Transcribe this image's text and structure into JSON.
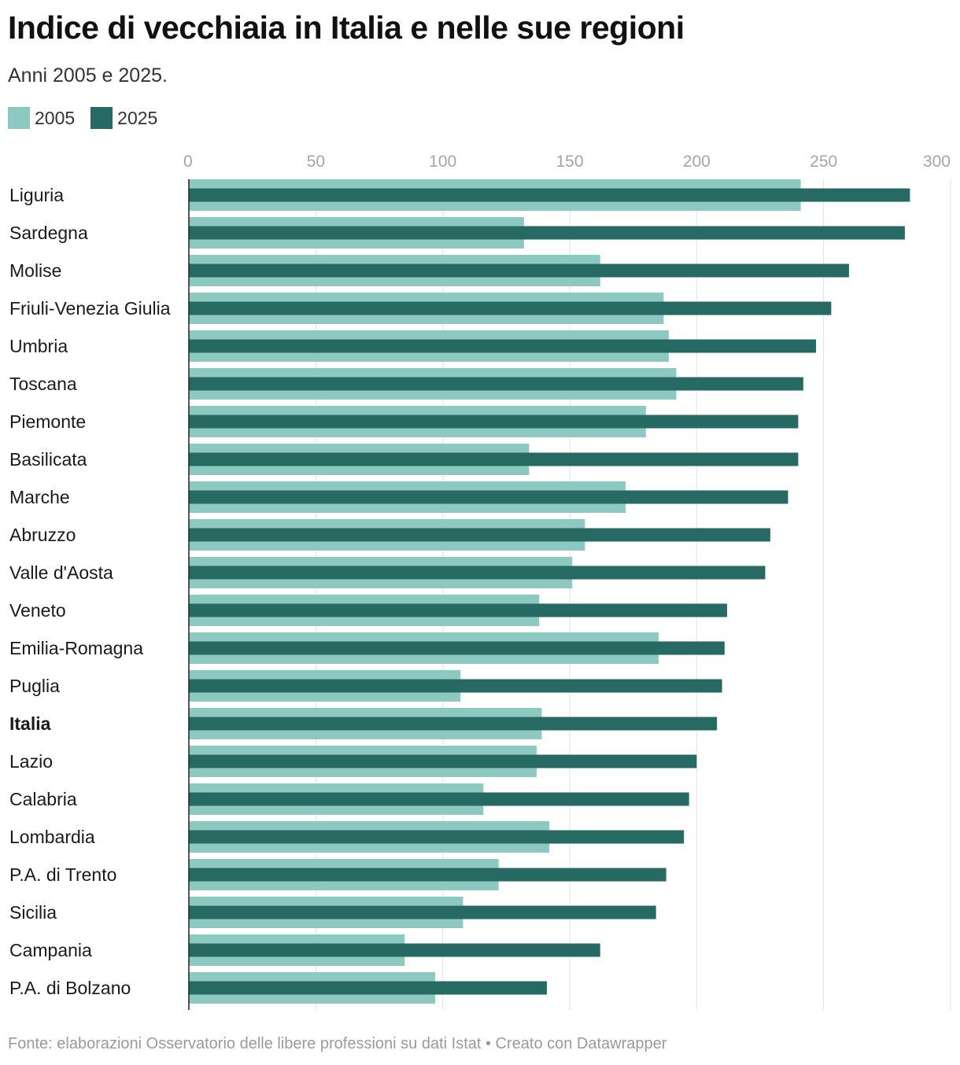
{
  "chart_data": {
    "type": "bar",
    "orientation": "horizontal",
    "title": "Indice di vecchiaia in Italia e nelle sue regioni",
    "subtitle": "Anni 2005 e 2025.",
    "categories": [
      "Liguria",
      "Sardegna",
      "Molise",
      "Friuli-Venezia Giulia",
      "Umbria",
      "Toscana",
      "Piemonte",
      "Basilicata",
      "Marche",
      "Abruzzo",
      "Valle d'Aosta",
      "Veneto",
      "Emilia-Romagna",
      "Puglia",
      "Italia",
      "Lazio",
      "Calabria",
      "Lombardia",
      "P.A. di Trento",
      "Sicilia",
      "Campania",
      "P.A. di Bolzano"
    ],
    "highlight_category": "Italia",
    "series": [
      {
        "name": "2005",
        "color": "#8dc9c1",
        "values": [
          241,
          132,
          162,
          187,
          189,
          192,
          180,
          134,
          172,
          156,
          151,
          138,
          185,
          107,
          139,
          137,
          116,
          142,
          122,
          108,
          85,
          97
        ]
      },
      {
        "name": "2025",
        "color": "#276a63",
        "values": [
          284,
          282,
          260,
          253,
          247,
          242,
          240,
          240,
          236,
          229,
          227,
          212,
          211,
          210,
          208,
          200,
          197,
          195,
          188,
          184,
          162,
          141
        ]
      }
    ],
    "xlim": [
      0,
      300
    ],
    "xticks": [
      "0",
      "50",
      "100",
      "150",
      "200",
      "250",
      "300"
    ],
    "grid": true,
    "legend_position": "top-left"
  },
  "footer": "Fonte: elaborazioni Osservatorio delle libere professioni su dati Istat • Creato con Datawrapper"
}
